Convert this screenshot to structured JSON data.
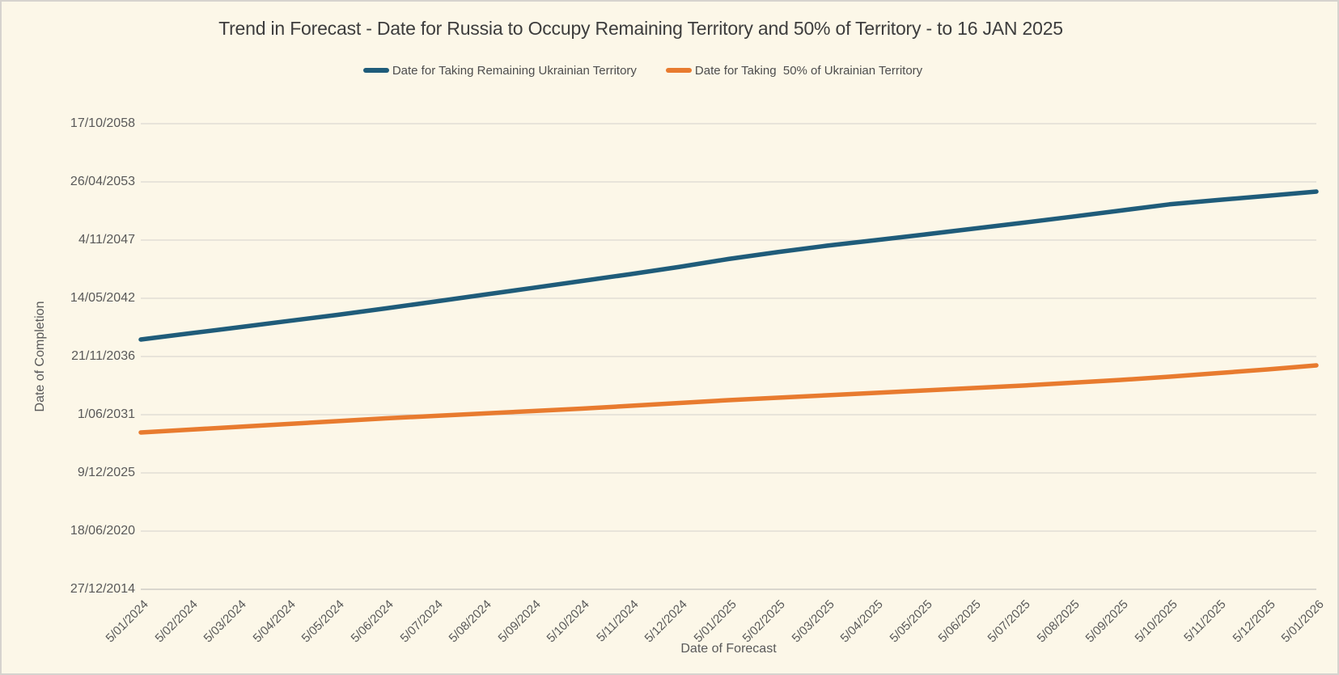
{
  "chart_data": {
    "type": "line",
    "title": "Trend in Forecast - Date for Russia to Occupy Remaining Territory and 50% of Territory - to 16 JAN 2025",
    "xlabel": "Date of Forecast",
    "ylabel": "Date of Completion",
    "legend_position": "top",
    "grid": true,
    "background_color": "#FCF7E8",
    "gridline_color": "#DBD8D2",
    "axis_line_color": "#CFCCC6",
    "text_color": "#595959",
    "y_axis": {
      "tick_labels_top_to_bottom": [
        "17/10/2058",
        "26/04/2053",
        "4/11/2047",
        "14/05/2042",
        "21/11/2036",
        "1/06/2031",
        "9/12/2025",
        "18/06/2020",
        "27/12/2014"
      ],
      "tick_serials_top_to_bottom": [
        58000,
        56000,
        54000,
        52000,
        50000,
        48000,
        46000,
        44000,
        42000
      ],
      "serial_min": 42000,
      "serial_max": 58000,
      "major_unit_days": 2000
    },
    "x_axis": {
      "tick_labels": [
        "5/01/2024",
        "5/02/2024",
        "5/03/2024",
        "5/04/2024",
        "5/05/2024",
        "5/06/2024",
        "5/07/2024",
        "5/08/2024",
        "5/09/2024",
        "5/10/2024",
        "5/11/2024",
        "5/12/2024",
        "5/01/2025",
        "5/02/2025",
        "5/03/2025",
        "5/04/2025",
        "5/05/2025",
        "5/06/2025",
        "5/07/2025",
        "5/08/2025",
        "5/09/2025",
        "5/10/2025",
        "5/11/2025",
        "5/12/2025",
        "5/01/2026"
      ]
    },
    "series": [
      {
        "name": "Date for Taking Remaining Ukrainian Territory",
        "color": "#1F5C7A",
        "line_width": 5.5,
        "values_serial": [
          50583,
          50794,
          51003,
          51217,
          51428,
          51653,
          51886,
          52123,
          52356,
          52595,
          52831,
          53081,
          53350,
          53586,
          53806,
          53997,
          54191,
          54391,
          54594,
          54800,
          55014,
          55228,
          55378,
          55522,
          55667
        ],
        "values_date_approx": [
          "Jul 2038",
          "Jan 2039",
          "Aug 2039",
          "Mar 2040",
          "Oct 2040",
          "May 2041",
          "Jan 2042",
          "Sep 2042",
          "May 2043",
          "Dec 2043",
          "Aug 2044",
          "Apr 2045",
          "Jan 2046",
          "Sep 2046",
          "Apr 2047",
          "Nov 2047",
          "May 2048",
          "Nov 2048",
          "Jun 2049",
          "Jan 2050",
          "Aug 2050",
          "Mar 2051",
          "Aug 2051",
          "Jan 2052",
          "May 2052"
        ]
      },
      {
        "name": "Date for Taking  50% of Ukrainian Territory",
        "color": "#E87B2F",
        "line_width": 5.5,
        "values_serial": [
          47389,
          47486,
          47583,
          47681,
          47778,
          47875,
          47958,
          48042,
          48125,
          48208,
          48306,
          48403,
          48500,
          48583,
          48667,
          48750,
          48833,
          48917,
          49000,
          49097,
          49194,
          49306,
          49431,
          49556,
          49694
        ],
        "values_date_approx": [
          "Oct 2029",
          "Jan 2030",
          "Apr 2030",
          "Jul 2030",
          "Oct 2030",
          "Feb 2031",
          "Apr 2031",
          "Jul 2031",
          "Oct 2031",
          "Dec 2031",
          "Apr 2032",
          "Jul 2032",
          "Oct 2032",
          "Jan 2033",
          "Apr 2033",
          "Jun 2033",
          "Sep 2033",
          "Dec 2033",
          "Mar 2034",
          "Jun 2034",
          "Sep 2034",
          "Jan 2035",
          "May 2035",
          "Sep 2035",
          "Feb 2036"
        ]
      }
    ]
  }
}
